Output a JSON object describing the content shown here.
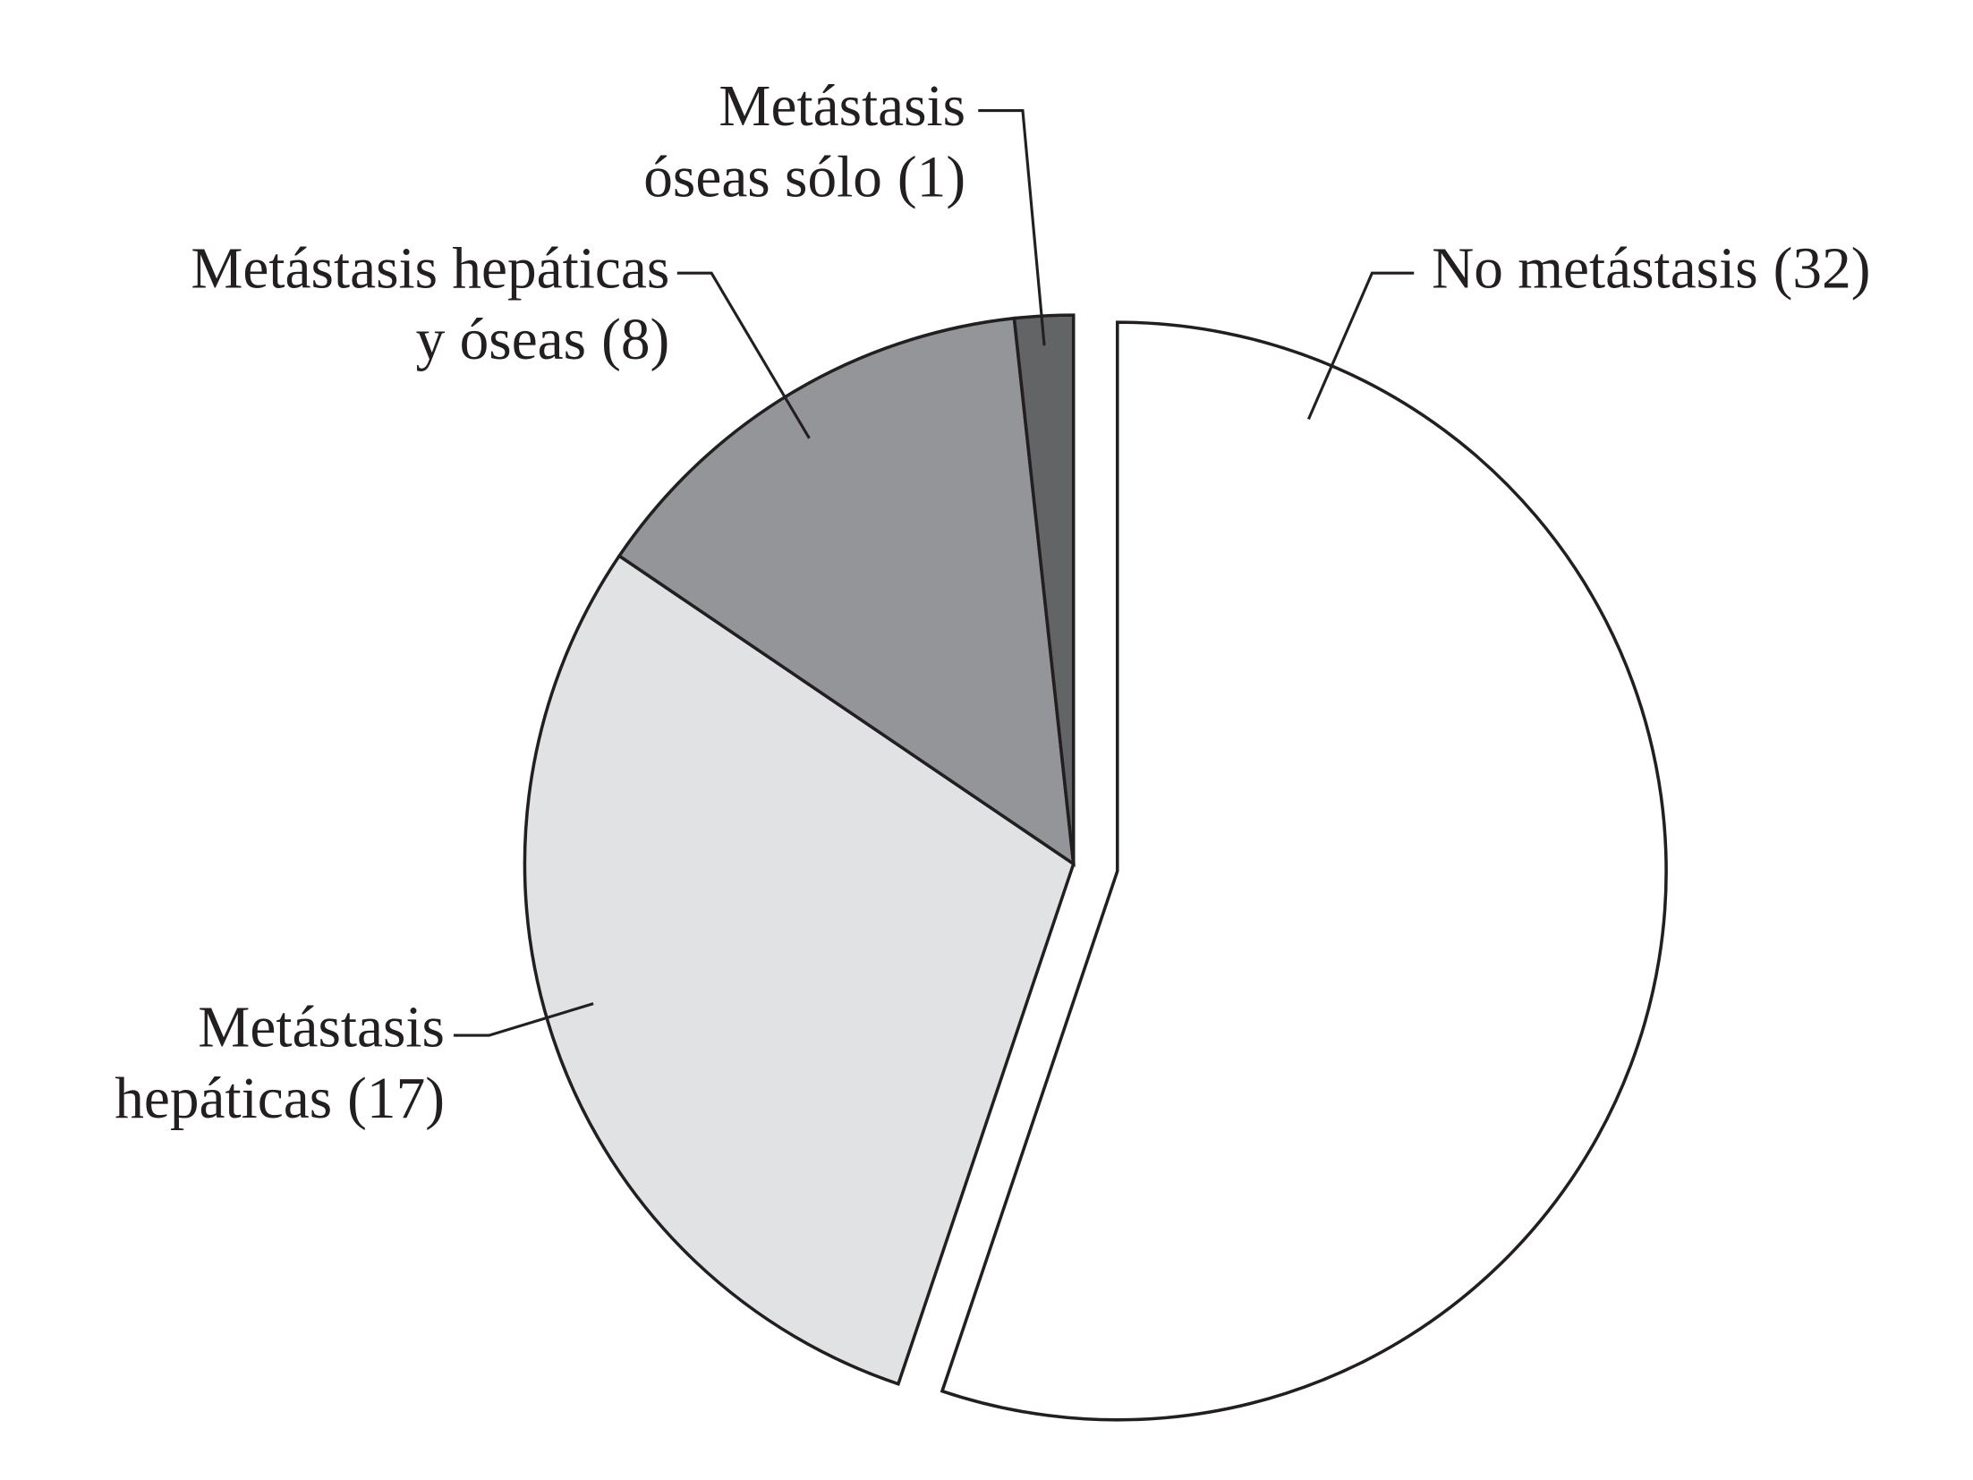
{
  "chart_data": {
    "type": "pie",
    "categories": [
      [
        "No metástasis"
      ],
      [
        "Metástasis",
        "hepáticas"
      ],
      [
        "Metástasis hepáticas",
        "y óseas"
      ],
      [
        "Metástasis",
        "óseas sólo"
      ]
    ],
    "values": [
      32,
      17,
      8,
      1
    ],
    "value_labels": [
      "(32)",
      "(17)",
      "(8)",
      "(1)"
    ],
    "colors": [
      "#ffffff",
      "#e1e2e4",
      "#939598",
      "#636466"
    ],
    "start_angle": "top",
    "direction": "clockwise"
  }
}
